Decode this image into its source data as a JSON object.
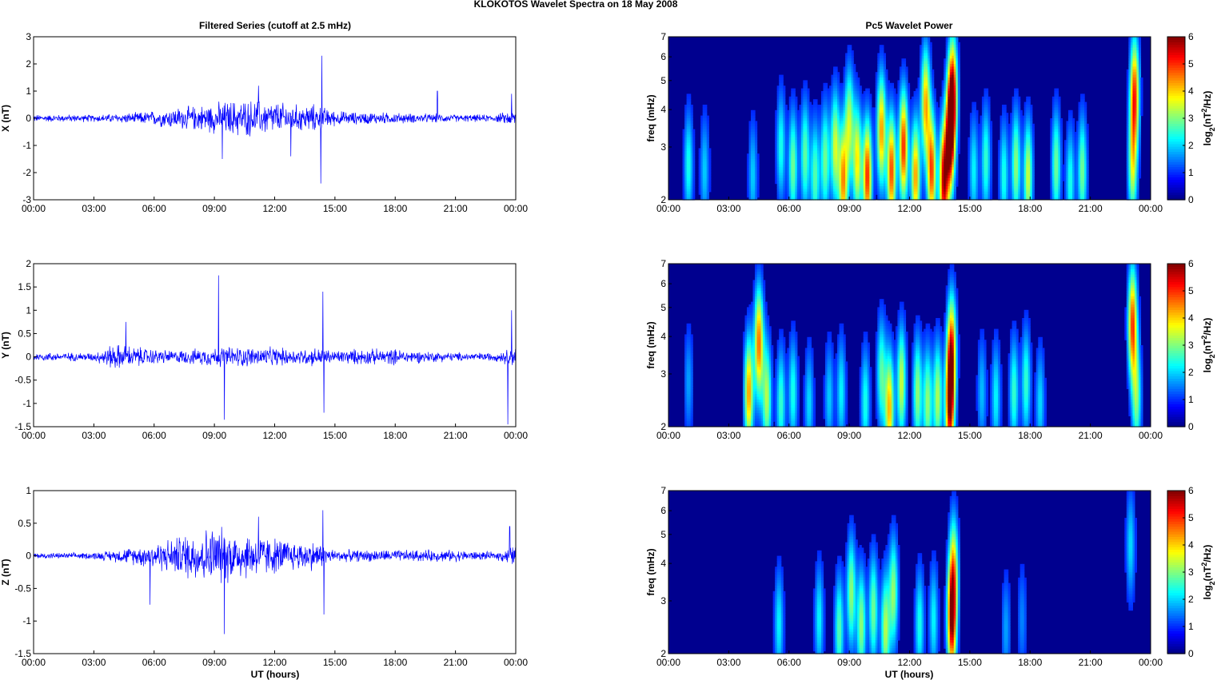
{
  "suptitle": "KLOKOTOS Wavelet Spectra on 18 May      2008",
  "left_title": "Filtered Series (cutoff at 2.5 mHz)",
  "right_title": "Pc5 Wavelet Power",
  "xlabel": "UT (hours)",
  "colors": {
    "trace": "#0000ff",
    "axis": "#000000",
    "background": "#00008f"
  },
  "colorbar": {
    "label": "log2(nT2/Hz)",
    "ticks": [
      "0",
      "1",
      "2",
      "3",
      "4",
      "5",
      "6"
    ],
    "range": [
      0,
      6
    ],
    "colormap": "jet"
  },
  "chart_data": [
    {
      "type": "line",
      "component": "X",
      "ylabel": "X (nT)",
      "xlim": [
        "00:00",
        "24:00"
      ],
      "ylim": [
        -3,
        3
      ],
      "x_ticks": [
        "00:00",
        "03:00",
        "06:00",
        "09:00",
        "12:00",
        "15:00",
        "18:00",
        "21:00",
        "00:00"
      ],
      "y_ticks": [
        "-3",
        "-2",
        "-1",
        "0",
        "1",
        "2",
        "3"
      ],
      "activity_hours": [
        0,
        1,
        2,
        3,
        4,
        5,
        6,
        7,
        8,
        9,
        10,
        11,
        12,
        13,
        14,
        15,
        16,
        17,
        18,
        19,
        20,
        21,
        22,
        23,
        24
      ],
      "activity_amplitude": [
        0.12,
        0.12,
        0.12,
        0.12,
        0.15,
        0.18,
        0.25,
        0.35,
        0.4,
        0.5,
        0.6,
        0.6,
        0.55,
        0.45,
        0.45,
        0.25,
        0.2,
        0.2,
        0.18,
        0.15,
        0.15,
        0.12,
        0.12,
        0.12,
        0.3
      ],
      "spikes": [
        {
          "t": 9.4,
          "v": -1.5
        },
        {
          "t": 11.2,
          "v": 1.2
        },
        {
          "t": 12.8,
          "v": -1.4
        },
        {
          "t": 14.3,
          "v": -2.4
        },
        {
          "t": 14.35,
          "v": 2.3
        },
        {
          "t": 20.1,
          "v": 1.0
        },
        {
          "t": 23.8,
          "v": 0.9
        }
      ]
    },
    {
      "type": "line",
      "component": "Y",
      "ylabel": "Y (nT)",
      "xlim": [
        "00:00",
        "24:00"
      ],
      "ylim": [
        -1.5,
        2
      ],
      "x_ticks": [
        "00:00",
        "03:00",
        "06:00",
        "09:00",
        "12:00",
        "15:00",
        "18:00",
        "21:00",
        "00:00"
      ],
      "y_ticks": [
        "-1.5",
        "-1",
        "-0.5",
        "0",
        "0.5",
        "1",
        "1.5",
        "2"
      ],
      "activity_hours": [
        0,
        1,
        2,
        3,
        4,
        5,
        6,
        7,
        8,
        9,
        10,
        11,
        12,
        13,
        14,
        15,
        16,
        17,
        18,
        19,
        20,
        21,
        22,
        23,
        24
      ],
      "activity_amplitude": [
        0.08,
        0.08,
        0.08,
        0.08,
        0.25,
        0.2,
        0.15,
        0.12,
        0.15,
        0.18,
        0.2,
        0.18,
        0.18,
        0.15,
        0.18,
        0.12,
        0.15,
        0.15,
        0.15,
        0.12,
        0.1,
        0.08,
        0.08,
        0.08,
        0.2
      ],
      "spikes": [
        {
          "t": 9.2,
          "v": 1.75
        },
        {
          "t": 9.5,
          "v": -1.35
        },
        {
          "t": 4.6,
          "v": 0.75
        },
        {
          "t": 14.4,
          "v": 1.4
        },
        {
          "t": 14.45,
          "v": -1.2
        },
        {
          "t": 23.6,
          "v": -1.45
        },
        {
          "t": 23.8,
          "v": 1.0
        }
      ]
    },
    {
      "type": "line",
      "component": "Z",
      "ylabel": "Z (nT)",
      "xlim": [
        "00:00",
        "24:00"
      ],
      "ylim": [
        -1.5,
        1
      ],
      "x_ticks": [
        "00:00",
        "03:00",
        "06:00",
        "09:00",
        "12:00",
        "15:00",
        "18:00",
        "21:00",
        "00:00"
      ],
      "y_ticks": [
        "-1.5",
        "-1",
        "-0.5",
        "0",
        "0.5",
        "1"
      ],
      "activity_hours": [
        0,
        1,
        2,
        3,
        4,
        5,
        6,
        7,
        8,
        9,
        10,
        11,
        12,
        13,
        14,
        15,
        16,
        17,
        18,
        19,
        20,
        21,
        22,
        23,
        24
      ],
      "activity_amplitude": [
        0.04,
        0.04,
        0.04,
        0.05,
        0.08,
        0.12,
        0.18,
        0.25,
        0.35,
        0.4,
        0.35,
        0.3,
        0.25,
        0.2,
        0.2,
        0.08,
        0.08,
        0.08,
        0.08,
        0.08,
        0.08,
        0.08,
        0.06,
        0.05,
        0.15
      ],
      "spikes": [
        {
          "t": 5.8,
          "v": -0.75
        },
        {
          "t": 9.5,
          "v": -1.2
        },
        {
          "t": 11.2,
          "v": 0.6
        },
        {
          "t": 14.4,
          "v": 0.7
        },
        {
          "t": 14.45,
          "v": -0.9
        },
        {
          "t": 23.7,
          "v": 0.45
        }
      ]
    },
    {
      "type": "heatmap",
      "component": "X",
      "ylabel": "freq (mHz)",
      "ylim": [
        2,
        7
      ],
      "y_scale": "log",
      "x_ticks": [
        "00:00",
        "03:00",
        "06:00",
        "09:00",
        "12:00",
        "15:00",
        "18:00",
        "21:00",
        "00:00"
      ],
      "y_ticks": [
        "2",
        "3",
        "4",
        "5",
        "6",
        "7"
      ],
      "blobs": [
        {
          "t": 1.0,
          "f": 2.6,
          "p": 2.0
        },
        {
          "t": 1.8,
          "f": 2.5,
          "p": 1.5
        },
        {
          "t": 4.2,
          "f": 2.4,
          "p": 1.5
        },
        {
          "t": 5.6,
          "f": 3.0,
          "p": 2.0
        },
        {
          "t": 6.2,
          "f": 2.6,
          "p": 2.6
        },
        {
          "t": 6.8,
          "f": 2.8,
          "p": 2.5
        },
        {
          "t": 7.3,
          "f": 2.4,
          "p": 2.4
        },
        {
          "t": 7.8,
          "f": 2.7,
          "p": 2.6
        },
        {
          "t": 8.3,
          "f": 3.0,
          "p": 3.2
        },
        {
          "t": 8.7,
          "f": 2.3,
          "p": 4.2
        },
        {
          "t": 9.0,
          "f": 3.6,
          "p": 3.0
        },
        {
          "t": 9.4,
          "f": 2.7,
          "p": 3.6
        },
        {
          "t": 9.9,
          "f": 2.4,
          "p": 5.0
        },
        {
          "t": 10.6,
          "f": 3.4,
          "p": 4.2
        },
        {
          "t": 11.1,
          "f": 2.5,
          "p": 4.8
        },
        {
          "t": 11.7,
          "f": 3.0,
          "p": 5.0
        },
        {
          "t": 12.3,
          "f": 2.4,
          "p": 4.2
        },
        {
          "t": 12.8,
          "f": 4.2,
          "p": 4.0
        },
        {
          "t": 13.1,
          "f": 2.5,
          "p": 4.8
        },
        {
          "t": 13.7,
          "f": 2.3,
          "p": 5.5
        },
        {
          "t": 14.0,
          "f": 3.2,
          "p": 6.0
        },
        {
          "t": 14.15,
          "f": 4.5,
          "p": 5.5
        },
        {
          "t": 15.2,
          "f": 2.5,
          "p": 1.8
        },
        {
          "t": 15.8,
          "f": 2.7,
          "p": 2.2
        },
        {
          "t": 16.7,
          "f": 2.4,
          "p": 2.0
        },
        {
          "t": 17.3,
          "f": 2.6,
          "p": 2.8
        },
        {
          "t": 17.9,
          "f": 2.4,
          "p": 3.2
        },
        {
          "t": 19.3,
          "f": 2.6,
          "p": 2.6
        },
        {
          "t": 20.0,
          "f": 2.3,
          "p": 2.0
        },
        {
          "t": 20.6,
          "f": 2.5,
          "p": 2.6
        },
        {
          "t": 23.2,
          "f": 4.5,
          "p": 4.8
        },
        {
          "t": 23.1,
          "f": 2.6,
          "p": 3.0
        }
      ]
    },
    {
      "type": "heatmap",
      "component": "Y",
      "ylabel": "freq (mHz)",
      "ylim": [
        2,
        7
      ],
      "y_scale": "log",
      "x_ticks": [
        "00:00",
        "03:00",
        "06:00",
        "09:00",
        "12:00",
        "15:00",
        "18:00",
        "21:00",
        "00:00"
      ],
      "y_ticks": [
        "2",
        "3",
        "4",
        "5",
        "6",
        "7"
      ],
      "blobs": [
        {
          "t": 1.0,
          "f": 2.8,
          "p": 1.2
        },
        {
          "t": 4.0,
          "f": 2.6,
          "p": 4.2
        },
        {
          "t": 4.5,
          "f": 3.8,
          "p": 4.5
        },
        {
          "t": 4.9,
          "f": 2.5,
          "p": 3.0
        },
        {
          "t": 5.6,
          "f": 2.4,
          "p": 2.2
        },
        {
          "t": 6.2,
          "f": 2.6,
          "p": 2.0
        },
        {
          "t": 7.0,
          "f": 2.4,
          "p": 1.6
        },
        {
          "t": 8.0,
          "f": 2.5,
          "p": 1.5
        },
        {
          "t": 8.6,
          "f": 2.6,
          "p": 1.8
        },
        {
          "t": 9.8,
          "f": 2.4,
          "p": 2.0
        },
        {
          "t": 10.6,
          "f": 3.0,
          "p": 2.4
        },
        {
          "t": 11.0,
          "f": 2.3,
          "p": 4.0
        },
        {
          "t": 11.6,
          "f": 2.8,
          "p": 3.2
        },
        {
          "t": 12.4,
          "f": 2.6,
          "p": 2.8
        },
        {
          "t": 12.9,
          "f": 2.4,
          "p": 2.8
        },
        {
          "t": 13.4,
          "f": 2.5,
          "p": 3.0
        },
        {
          "t": 14.0,
          "f": 2.4,
          "p": 5.6
        },
        {
          "t": 14.1,
          "f": 3.6,
          "p": 4.5
        },
        {
          "t": 15.6,
          "f": 2.6,
          "p": 1.4
        },
        {
          "t": 16.3,
          "f": 2.5,
          "p": 1.8
        },
        {
          "t": 17.2,
          "f": 2.6,
          "p": 2.2
        },
        {
          "t": 17.8,
          "f": 2.8,
          "p": 2.2
        },
        {
          "t": 18.5,
          "f": 2.4,
          "p": 1.6
        },
        {
          "t": 23.1,
          "f": 4.4,
          "p": 4.8
        },
        {
          "t": 23.3,
          "f": 2.5,
          "p": 2.6
        }
      ]
    },
    {
      "type": "heatmap",
      "component": "Z",
      "ylabel": "freq (mHz)",
      "ylim": [
        2,
        7
      ],
      "y_scale": "log",
      "x_ticks": [
        "00:00",
        "03:00",
        "06:00",
        "09:00",
        "12:00",
        "15:00",
        "18:00",
        "21:00",
        "00:00"
      ],
      "y_ticks": [
        "2",
        "3",
        "4",
        "5",
        "6",
        "7"
      ],
      "blobs": [
        {
          "t": 5.5,
          "f": 2.5,
          "p": 1.8
        },
        {
          "t": 7.5,
          "f": 2.6,
          "p": 1.8
        },
        {
          "t": 8.5,
          "f": 2.4,
          "p": 2.4
        },
        {
          "t": 9.1,
          "f": 3.2,
          "p": 2.8
        },
        {
          "t": 9.6,
          "f": 2.5,
          "p": 2.8
        },
        {
          "t": 10.2,
          "f": 2.8,
          "p": 2.6
        },
        {
          "t": 10.8,
          "f": 2.4,
          "p": 3.0
        },
        {
          "t": 11.2,
          "f": 3.2,
          "p": 2.8
        },
        {
          "t": 12.5,
          "f": 2.5,
          "p": 2.0
        },
        {
          "t": 13.2,
          "f": 2.6,
          "p": 1.8
        },
        {
          "t": 14.1,
          "f": 2.6,
          "p": 5.6
        },
        {
          "t": 14.2,
          "f": 3.8,
          "p": 3.2
        },
        {
          "t": 16.8,
          "f": 2.4,
          "p": 1.2
        },
        {
          "t": 17.6,
          "f": 2.6,
          "p": 1.0
        },
        {
          "t": 23.0,
          "f": 4.6,
          "p": 1.6
        }
      ]
    }
  ]
}
